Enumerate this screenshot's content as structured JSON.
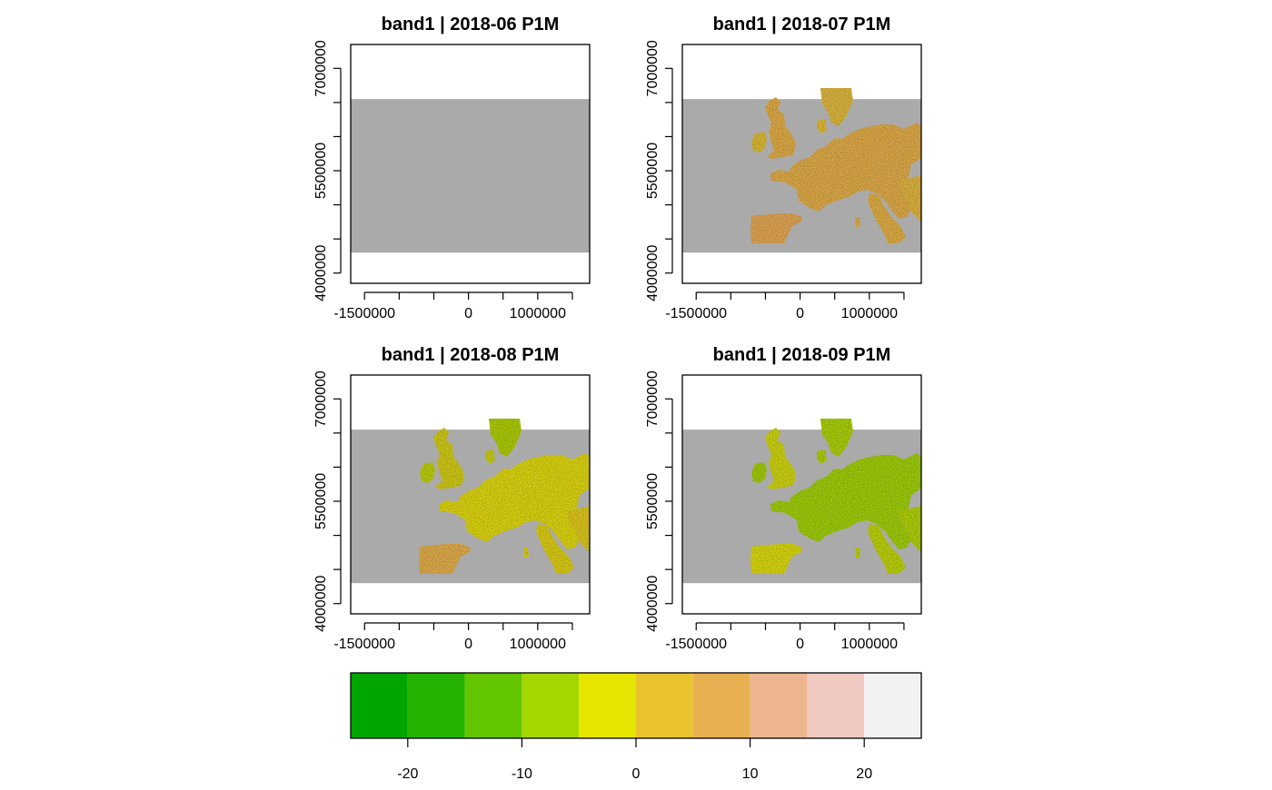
{
  "figure": {
    "panels": [
      {
        "title": "band1 | 2018-06 P1M",
        "month": "2018-06",
        "has_data": false
      },
      {
        "title": "band1 | 2018-07 P1M",
        "month": "2018-07",
        "has_data": true
      },
      {
        "title": "band1 | 2018-08 P1M",
        "month": "2018-08",
        "has_data": true
      },
      {
        "title": "band1 | 2018-09 P1M",
        "month": "2018-09",
        "has_data": true
      }
    ],
    "x_tick_labels": [
      "-1500000",
      "0",
      "1000000"
    ],
    "y_tick_labels": [
      "4000000",
      "5500000",
      "7000000"
    ],
    "colors": {
      "nodata": "#aaaaaa",
      "frame": "#000000"
    }
  },
  "chart_data": {
    "type": "heatmap",
    "layout": "2x2 small multiples",
    "x_ticks": [
      -1500000,
      -1000000,
      -500000,
      0,
      500000,
      1000000,
      1500000
    ],
    "x_tick_labels_shown": [
      -1500000,
      0,
      1000000
    ],
    "y_ticks": [
      4000000,
      4500000,
      5000000,
      5500000,
      6000000,
      6500000,
      7000000
    ],
    "y_tick_labels_shown": [
      4000000,
      5500000,
      7000000
    ],
    "xlim": [
      -1700000,
      1750000
    ],
    "ylim": [
      3850000,
      7350000
    ],
    "data_extent": {
      "x": [
        -1700000,
        1750000
      ],
      "y": [
        4300000,
        6550000
      ]
    },
    "panel_summaries": [
      {
        "title": "band1 | 2018-06 P1M",
        "dominant_value_range": null
      },
      {
        "title": "band1 | 2018-07 P1M",
        "dominant_value_range": [
          0,
          15
        ]
      },
      {
        "title": "band1 | 2018-08 P1M",
        "dominant_value_range": [
          -5,
          10
        ]
      },
      {
        "title": "band1 | 2018-09 P1M",
        "dominant_value_range": [
          -15,
          5
        ]
      }
    ],
    "legend": {
      "placement": "bottom",
      "breaks": [
        -25,
        -20,
        -15,
        -10,
        -5,
        0,
        5,
        10,
        15,
        20,
        25
      ],
      "tick_labels": [
        "-20",
        "-10",
        "0",
        "10",
        "20"
      ],
      "tick_values": [
        -20,
        -10,
        0,
        10,
        20
      ],
      "colors": [
        "#00a600",
        "#24b300",
        "#63c600",
        "#a4d800",
        "#e6e600",
        "#e8c32e",
        "#e9b052",
        "#ecb58f",
        "#f0c9c0",
        "#f2f2f2"
      ]
    }
  }
}
